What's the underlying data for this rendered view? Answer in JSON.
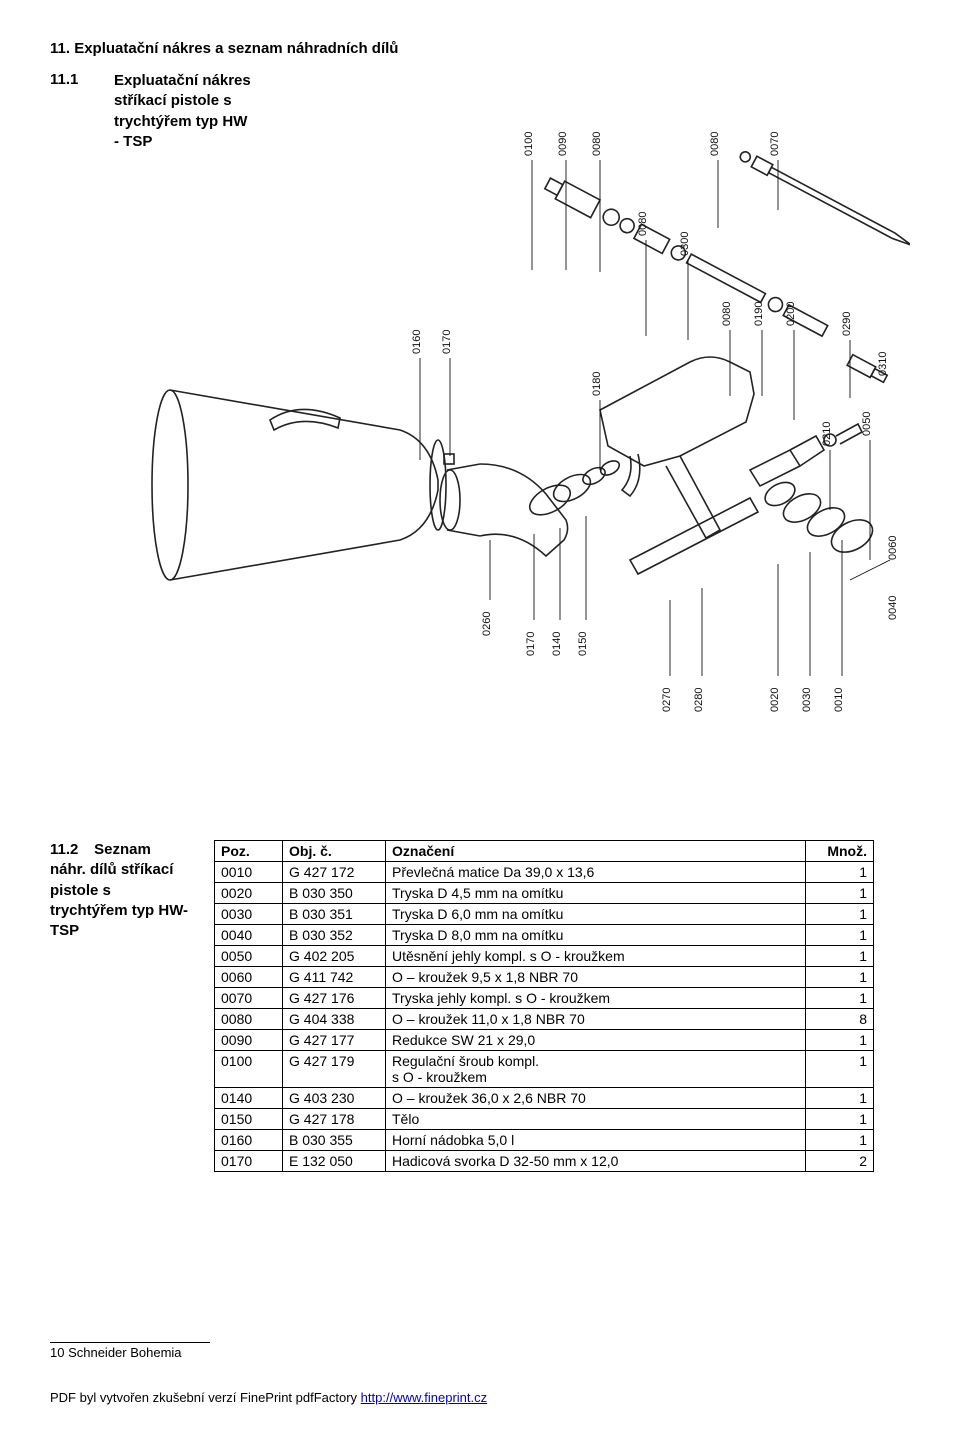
{
  "heading_main": "11.   Expluatační nákres a seznam náhradních dílů",
  "heading_11_1_num": "11.1",
  "heading_11_1_txt": "Expluatační nákres stříkací pistole s trychtýřem typ HW - TSP",
  "heading_11_2_num": "11.2",
  "heading_11_2_txt": "Seznam náhr. dílů stříkací pistole s trychtýřem typ HW-TSP",
  "callouts": [
    "0100",
    "0090",
    "0080",
    "0080",
    "0070",
    "0080",
    "0300",
    "0310",
    "0080",
    "0290",
    "0190",
    "0200",
    "0160",
    "0170",
    "0180",
    "0210",
    "0050",
    "0060",
    "0260",
    "0170",
    "0140",
    "0150",
    "0040",
    "0270",
    "0280",
    "0020",
    "0030",
    "0010"
  ],
  "table": {
    "headers": {
      "poz": "Poz.",
      "obj": "Obj. č.",
      "ozn": "Označení",
      "mnoz": "Množ."
    },
    "rows": [
      {
        "poz": "0010",
        "obj": "G 427 172",
        "ozn": "Převlečná matice Da 39,0 x 13,6",
        "mnoz": "1"
      },
      {
        "poz": "0020",
        "obj": "B 030 350",
        "ozn": "Tryska D 4,5 mm na omítku",
        "mnoz": "1"
      },
      {
        "poz": "0030",
        "obj": "B 030 351",
        "ozn": "Tryska D 6,0 mm na omítku",
        "mnoz": "1"
      },
      {
        "poz": "0040",
        "obj": "B 030 352",
        "ozn": "Tryska D 8,0 mm na omítku",
        "mnoz": "1"
      },
      {
        "poz": "0050",
        "obj": "G 402 205",
        "ozn": "Utěsnění jehly kompl. s O - kroužkem",
        "mnoz": "1"
      },
      {
        "poz": "0060",
        "obj": "G 411 742",
        "ozn": "O – kroužek 9,5 x 1,8 NBR 70",
        "mnoz": "1"
      },
      {
        "poz": "0070",
        "obj": "G 427 176",
        "ozn": "Tryska jehly kompl. s O - kroužkem",
        "mnoz": "1"
      },
      {
        "poz": "0080",
        "obj": "G 404 338",
        "ozn": "O – kroužek 11,0 x 1,8 NBR 70",
        "mnoz": "8"
      },
      {
        "poz": "0090",
        "obj": "G 427 177",
        "ozn": "Redukce SW 21 x 29,0",
        "mnoz": "1"
      },
      {
        "poz": "0100",
        "obj": "G 427 179",
        "ozn": "Regulační šroub kompl.\ns O - kroužkem",
        "mnoz": "1"
      },
      {
        "poz": "0140",
        "obj": "G 403 230",
        "ozn": "O – kroužek 36,0 x 2,6 NBR 70",
        "mnoz": "1"
      },
      {
        "poz": "0150",
        "obj": "G 427 178",
        "ozn": "Tělo",
        "mnoz": "1"
      },
      {
        "poz": "0160",
        "obj": "B 030 355",
        "ozn": "Horní nádobka 5,0 l",
        "mnoz": "1"
      },
      {
        "poz": "0170",
        "obj": "E 132 050",
        "ozn": "Hadicová svorka D 32-50 mm x 12,0",
        "mnoz": "2"
      }
    ]
  },
  "footer_text": "10 Schneider Bohemia",
  "pdf_footer_text": "PDF byl vytvořen zkušební verzí FinePrint pdfFactory ",
  "pdf_footer_link": "http://www.fineprint.cz",
  "diagram": {
    "stroke": "#222222",
    "stroke_width": 1.6
  }
}
